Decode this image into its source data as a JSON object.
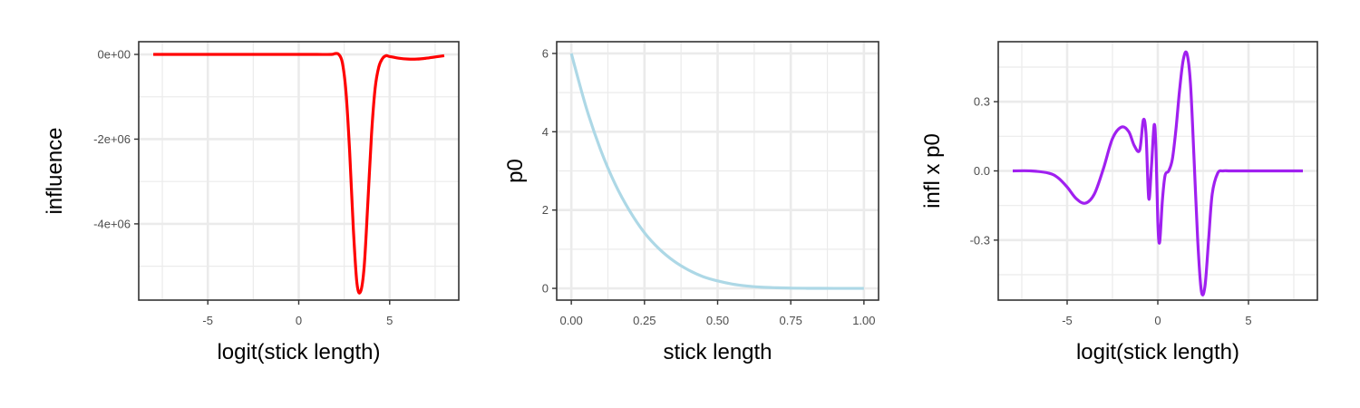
{
  "chart_data": [
    {
      "type": "line",
      "xlabel": "logit(stick length)",
      "ylabel": "influence",
      "xlim": [
        -8.8,
        8.8
      ],
      "ylim": [
        -5800000,
        300000
      ],
      "xticks": [
        -5,
        0,
        5
      ],
      "xtick_labels": [
        "-5",
        "0",
        "5"
      ],
      "yticks": [
        0,
        -2000000,
        -4000000
      ],
      "ytick_labels": [
        "0e+00",
        "-2e+06",
        "-4e+06"
      ],
      "grid": true,
      "color": "#ff0000",
      "series": [
        {
          "x": [
            -8,
            -6,
            -4,
            -2,
            0,
            1,
            1.8,
            2.0,
            2.2,
            2.4,
            2.6,
            2.8,
            3.0,
            3.2,
            3.4,
            3.6,
            3.8,
            4.0,
            4.2,
            4.4,
            4.6,
            4.8,
            5.0,
            5.5,
            6.0,
            6.5,
            7.0,
            7.5,
            8.0
          ],
          "y": [
            0,
            0,
            0,
            0,
            0,
            0,
            0,
            20000,
            0,
            -200000,
            -900000,
            -2300000,
            -4100000,
            -5400000,
            -5600000,
            -5000000,
            -3500000,
            -1900000,
            -800000,
            -300000,
            -100000,
            -30000,
            -50000,
            -90000,
            -110000,
            -110000,
            -90000,
            -60000,
            -30000
          ]
        }
      ]
    },
    {
      "type": "line",
      "xlabel": "stick length",
      "ylabel": "p0",
      "xlim": [
        -0.05,
        1.05
      ],
      "ylim": [
        -0.3,
        6.3
      ],
      "xticks": [
        0,
        0.25,
        0.5,
        0.75,
        1.0
      ],
      "xtick_labels": [
        "0.00",
        "0.25",
        "0.50",
        "0.75",
        "1.00"
      ],
      "yticks": [
        0,
        2,
        4,
        6
      ],
      "ytick_labels": [
        "0",
        "2",
        "4",
        "6"
      ],
      "grid": true,
      "color": "#add8e6",
      "series": [
        {
          "x": [
            0,
            0.05,
            0.1,
            0.15,
            0.2,
            0.25,
            0.3,
            0.35,
            0.4,
            0.45,
            0.5,
            0.55,
            0.6,
            0.65,
            0.7,
            0.75,
            0.8,
            0.85,
            0.9,
            0.95,
            1.0
          ],
          "y": [
            6.0,
            4.64,
            3.54,
            2.66,
            1.97,
            1.42,
            1.01,
            0.7,
            0.47,
            0.3,
            0.19,
            0.11,
            0.06,
            0.03,
            0.015,
            0.006,
            0.002,
            0.0005,
            0.0001,
            0,
            0
          ]
        }
      ]
    },
    {
      "type": "line",
      "xlabel": "logit(stick length)",
      "ylabel": "infl x p0",
      "xlim": [
        -8.8,
        8.8
      ],
      "ylim": [
        -0.56,
        0.56
      ],
      "xticks": [
        -5,
        0,
        5
      ],
      "xtick_labels": [
        "-5",
        "0",
        "5"
      ],
      "yticks": [
        0.3,
        0.0,
        -0.3
      ],
      "ytick_labels": [
        "0.3",
        "0.0",
        "-0.3"
      ],
      "grid": true,
      "color": "#a020f0",
      "series": [
        {
          "x": [
            -8,
            -7,
            -6,
            -5.5,
            -5,
            -4.5,
            -4,
            -3.5,
            -3,
            -2.5,
            -2,
            -1.6,
            -1.3,
            -1.0,
            -0.8,
            -0.65,
            -0.5,
            -0.35,
            -0.2,
            -0.1,
            0.0,
            0.1,
            0.25,
            0.4,
            0.6,
            0.8,
            1.0,
            1.2,
            1.4,
            1.6,
            1.8,
            2.0,
            2.2,
            2.4,
            2.6,
            2.8,
            3.0,
            3.3,
            3.6,
            4.0,
            5,
            6,
            7,
            8
          ],
          "y": [
            0,
            0,
            -0.01,
            -0.03,
            -0.07,
            -0.12,
            -0.14,
            -0.1,
            0.01,
            0.14,
            0.19,
            0.17,
            0.11,
            0.09,
            0.22,
            0.16,
            -0.12,
            0.02,
            0.2,
            0.09,
            -0.22,
            -0.31,
            -0.13,
            -0.02,
            0.0,
            0.05,
            0.18,
            0.35,
            0.48,
            0.51,
            0.38,
            0.05,
            -0.3,
            -0.52,
            -0.5,
            -0.3,
            -0.1,
            -0.01,
            0.0,
            0.0,
            0,
            0,
            0,
            0
          ]
        }
      ]
    }
  ]
}
